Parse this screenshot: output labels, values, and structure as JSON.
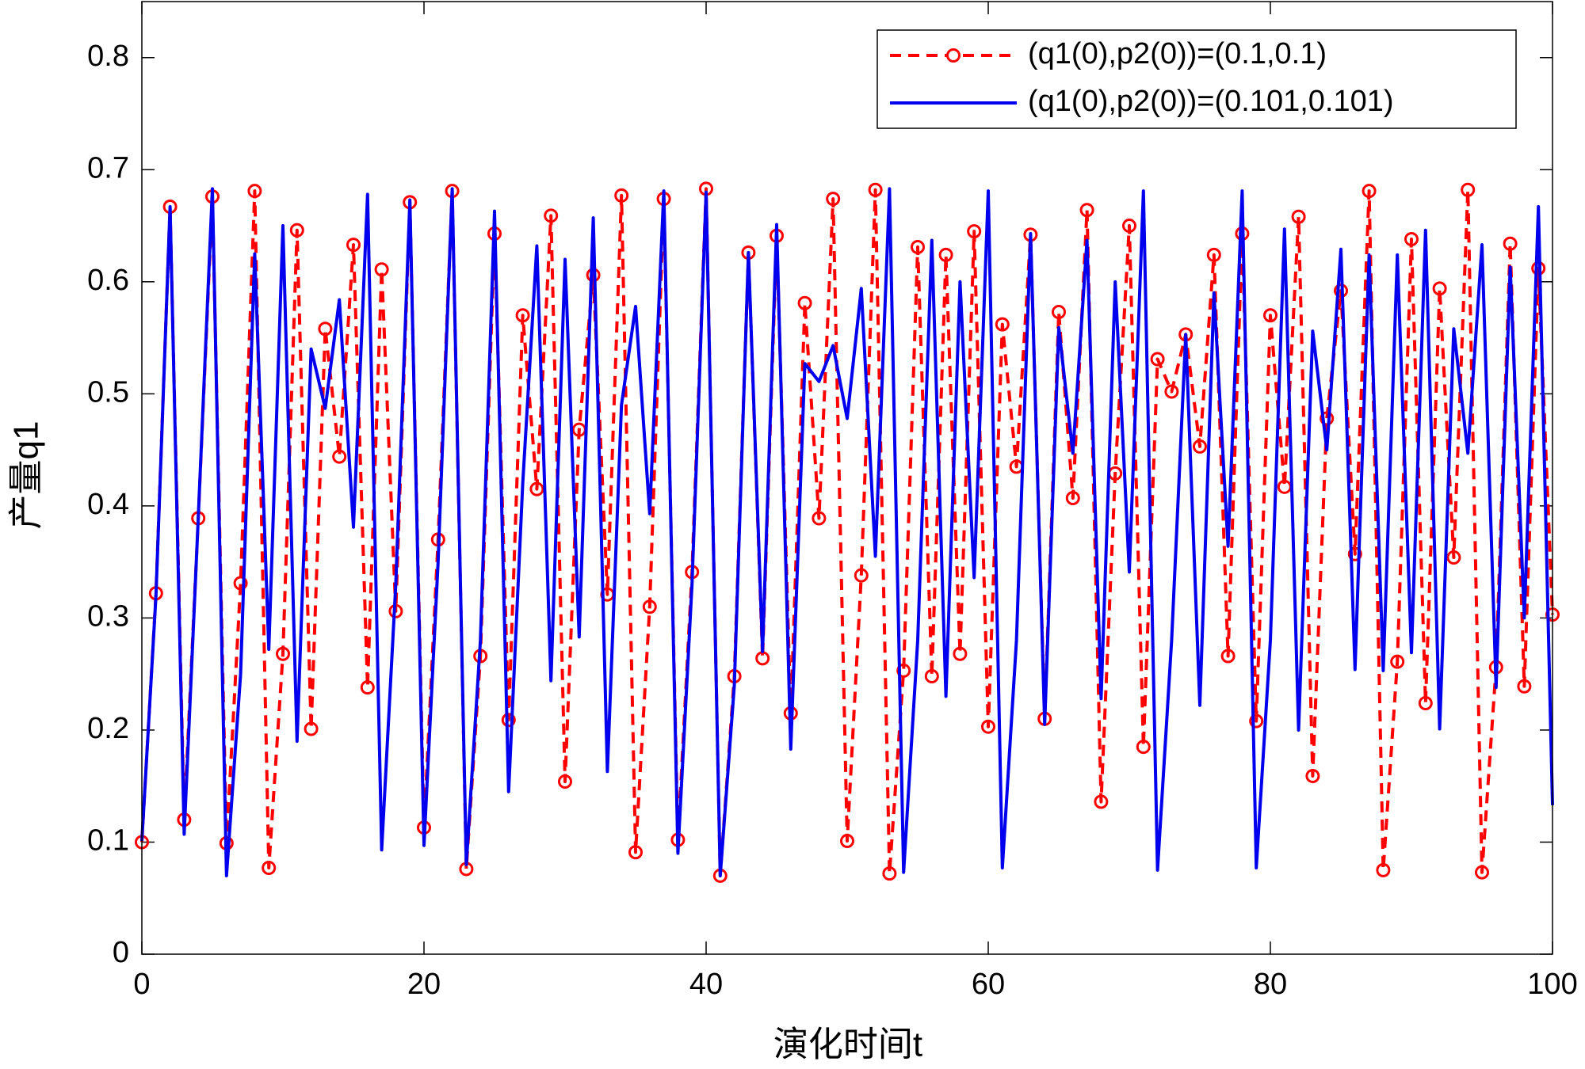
{
  "chart_data": {
    "type": "line",
    "x_label": "演化时间t",
    "y_label": "产量q1",
    "x": [
      0,
      1,
      2,
      3,
      4,
      5,
      6,
      7,
      8,
      9,
      10,
      11,
      12,
      13,
      14,
      15,
      16,
      17,
      18,
      19,
      20,
      21,
      22,
      23,
      24,
      25,
      26,
      27,
      28,
      29,
      30,
      31,
      32,
      33,
      34,
      35,
      36,
      37,
      38,
      39,
      40,
      41,
      42,
      43,
      44,
      45,
      46,
      47,
      48,
      49,
      50,
      51,
      52,
      53,
      54,
      55,
      56,
      57,
      58,
      59,
      60,
      61,
      62,
      63,
      64,
      65,
      66,
      67,
      68,
      69,
      70,
      71,
      72,
      73,
      74,
      75,
      76,
      77,
      78,
      79,
      80,
      81,
      82,
      83,
      84,
      85,
      86,
      87,
      88,
      89,
      90,
      91,
      92,
      93,
      94,
      95,
      96,
      97,
      98,
      99,
      100
    ],
    "series": [
      {
        "name": "(q1(0),p2(0))=(0.1,0.1)",
        "color": "#ff0000",
        "linestyle": "dashed",
        "marker": "o",
        "values": [
          0.1,
          0.322,
          0.667,
          0.12,
          0.389,
          0.676,
          0.099,
          0.331,
          0.681,
          0.077,
          0.268,
          0.646,
          0.201,
          0.558,
          0.444,
          0.633,
          0.238,
          0.611,
          0.306,
          0.671,
          0.113,
          0.37,
          0.681,
          0.076,
          0.266,
          0.643,
          0.209,
          0.57,
          0.415,
          0.659,
          0.154,
          0.468,
          0.606,
          0.321,
          0.677,
          0.091,
          0.31,
          0.674,
          0.102,
          0.341,
          0.683,
          0.07,
          0.248,
          0.626,
          0.264,
          0.641,
          0.215,
          0.581,
          0.389,
          0.674,
          0.101,
          0.338,
          0.682,
          0.072,
          0.253,
          0.631,
          0.248,
          0.624,
          0.268,
          0.645,
          0.203,
          0.562,
          0.435,
          0.642,
          0.21,
          0.573,
          0.407,
          0.664,
          0.136,
          0.429,
          0.65,
          0.185,
          0.531,
          0.502,
          0.553,
          0.453,
          0.624,
          0.266,
          0.643,
          0.208,
          0.57,
          0.417,
          0.658,
          0.159,
          0.478,
          0.592,
          0.357,
          0.681,
          0.075,
          0.261,
          0.638,
          0.224,
          0.594,
          0.354,
          0.682,
          0.073,
          0.256,
          0.634,
          0.239,
          0.612,
          0.303
        ]
      },
      {
        "name": "(q1(0),p2(0))=(0.101,0.101)",
        "color": "#0000ee",
        "linestyle": "solid",
        "marker": "none",
        "values": [
          0.101,
          0.32,
          0.667,
          0.107,
          0.39,
          0.683,
          0.07,
          0.25,
          0.625,
          0.272,
          0.65,
          0.19,
          0.54,
          0.487,
          0.584,
          0.381,
          0.678,
          0.093,
          0.33,
          0.673,
          0.097,
          0.35,
          0.683,
          0.08,
          0.28,
          0.663,
          0.145,
          0.42,
          0.632,
          0.244,
          0.62,
          0.283,
          0.657,
          0.163,
          0.49,
          0.578,
          0.393,
          0.681,
          0.09,
          0.33,
          0.68,
          0.07,
          0.24,
          0.626,
          0.27,
          0.651,
          0.183,
          0.527,
          0.511,
          0.543,
          0.478,
          0.594,
          0.355,
          0.683,
          0.073,
          0.28,
          0.637,
          0.23,
          0.6,
          0.336,
          0.681,
          0.077,
          0.28,
          0.643,
          0.205,
          0.559,
          0.447,
          0.637,
          0.228,
          0.6,
          0.341,
          0.681,
          0.075,
          0.28,
          0.553,
          0.222,
          0.59,
          0.364,
          0.681,
          0.077,
          0.28,
          0.647,
          0.2,
          0.556,
          0.45,
          0.629,
          0.254,
          0.624,
          0.253,
          0.624,
          0.269,
          0.646,
          0.201,
          0.558,
          0.447,
          0.633,
          0.238,
          0.613,
          0.3,
          0.667,
          0.133
        ]
      }
    ],
    "xlim": [
      0,
      100
    ],
    "xticks": [
      0,
      20,
      40,
      60,
      80,
      100
    ],
    "ylim": [
      0,
      0.85
    ],
    "yticks": [
      0,
      0.1,
      0.2,
      0.3,
      0.4,
      0.5,
      0.6,
      0.7,
      0.8
    ],
    "grid": false,
    "legend": "upper right"
  }
}
